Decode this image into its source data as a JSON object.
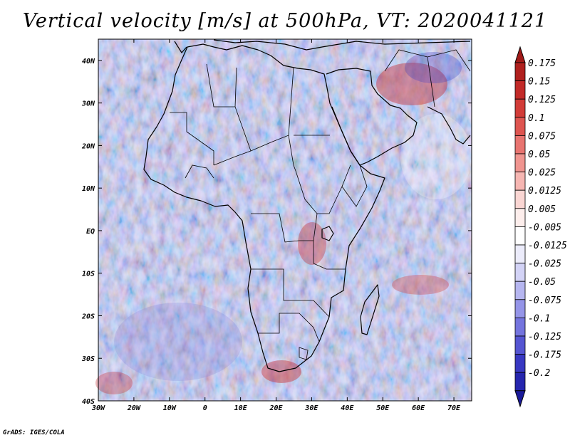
{
  "title": "Vertical velocity [m/s] at 500hPa, VT: 2020041121",
  "credit": "GrADS: IGES/COLA",
  "map": {
    "lon_range": [
      -30,
      75
    ],
    "lat_range": [
      -40,
      45
    ],
    "lat_ticks": [
      {
        "value": 40,
        "label": "40N"
      },
      {
        "value": 30,
        "label": "30N"
      },
      {
        "value": 20,
        "label": "20N"
      },
      {
        "value": 10,
        "label": "10N"
      },
      {
        "value": 0,
        "label": "EQ"
      },
      {
        "value": -10,
        "label": "10S"
      },
      {
        "value": -20,
        "label": "20S"
      },
      {
        "value": -30,
        "label": "30S"
      },
      {
        "value": -40,
        "label": "40S"
      }
    ],
    "lon_ticks": [
      {
        "value": -30,
        "label": "30W"
      },
      {
        "value": -20,
        "label": "20W"
      },
      {
        "value": -10,
        "label": "10W"
      },
      {
        "value": 0,
        "label": "0"
      },
      {
        "value": 10,
        "label": "10E"
      },
      {
        "value": 20,
        "label": "20E"
      },
      {
        "value": 30,
        "label": "30E"
      },
      {
        "value": 40,
        "label": "40E"
      },
      {
        "value": 50,
        "label": "50E"
      },
      {
        "value": 60,
        "label": "60E"
      },
      {
        "value": 70,
        "label": "70E"
      }
    ]
  },
  "colorbar": {
    "levels": [
      {
        "label": "0.175",
        "color": "#b0201e"
      },
      {
        "label": "0.15",
        "color": "#c22a28"
      },
      {
        "label": "0.125",
        "color": "#d23c38"
      },
      {
        "label": "0.1",
        "color": "#de5550"
      },
      {
        "label": "0.075",
        "color": "#e87470"
      },
      {
        "label": "0.05",
        "color": "#f09590"
      },
      {
        "label": "0.025",
        "color": "#f6b6b2"
      },
      {
        "label": "0.0125",
        "color": "#fad6d3"
      },
      {
        "label": "0.005",
        "color": "#fdeeec"
      },
      {
        "label": "-0.005",
        "color": "#ffffff"
      },
      {
        "label": "-0.0125",
        "color": "#ececfb"
      },
      {
        "label": "-0.025",
        "color": "#d3d3f6"
      },
      {
        "label": "-0.05",
        "color": "#b6b6f0"
      },
      {
        "label": "-0.075",
        "color": "#9595e8"
      },
      {
        "label": "-0.1",
        "color": "#7474de"
      },
      {
        "label": "-0.125",
        "color": "#5555d2"
      },
      {
        "label": "-0.175",
        "color": "#3838c2"
      },
      {
        "label": "-0.2",
        "color": "#2626ae"
      }
    ],
    "top_color": "#a01a18",
    "bottom_color": "#1a1a9a"
  }
}
